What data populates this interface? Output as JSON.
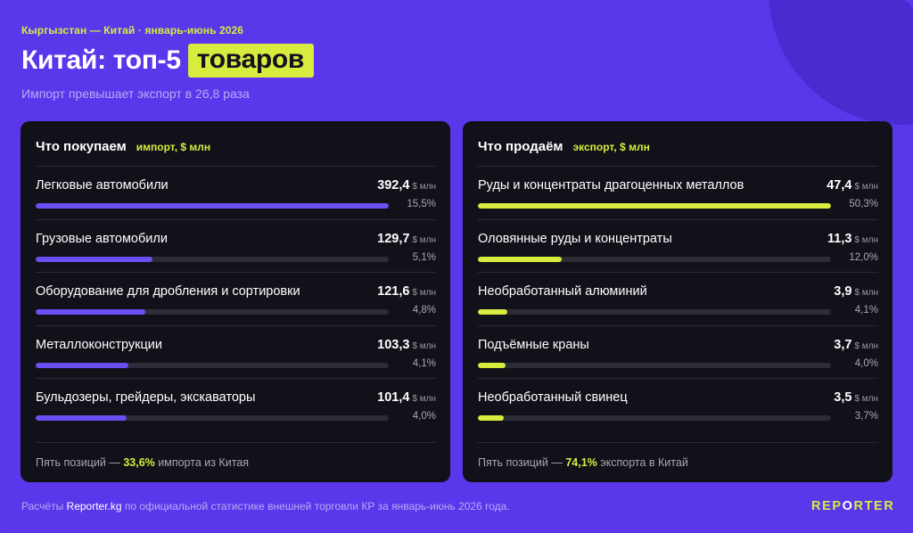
{
  "header": {
    "kicker": "Кыргызстан — Китай · январь-июнь 2026",
    "title_main": "Китай: топ-5",
    "title_highlight": "товаров",
    "subtitle": "Импорт превышает экспорт в 26,8 раза"
  },
  "unit_suffix": "$ млн",
  "colors": {
    "background": "#5a37ea",
    "panel": "#111119",
    "accent_yellow": "#d8ec3e",
    "import_bar": "#6a4ff5",
    "export_bar": "#d8ec3e"
  },
  "chart_data": [
    {
      "type": "bar",
      "orientation": "horizontal",
      "title": "Что покупаем",
      "unit_label": "импорт, $ млн",
      "categories": [
        "Легковые автомобили",
        "Грузовые автомобили",
        "Оборудование для дробления и сортировки",
        "Металлоконструкции",
        "Бульдозеры, грейдеры, экскаваторы"
      ],
      "values": [
        392.4,
        129.7,
        121.6,
        103.3,
        101.4
      ],
      "value_labels": [
        "392,4",
        "129,7",
        "121,6",
        "103,3",
        "101,4"
      ],
      "shares": [
        "15,5%",
        "5,1%",
        "4,8%",
        "4,1%",
        "4,0%"
      ],
      "xlim": [
        0,
        392.4
      ],
      "footer_before": "Пять позиций — ",
      "footer_highlight": "33,6%",
      "footer_after": " импорта из Китая"
    },
    {
      "type": "bar",
      "orientation": "horizontal",
      "title": "Что продаём",
      "unit_label": "экспорт, $ млн",
      "categories": [
        "Руды и концентраты драгоценных металлов",
        "Оловянные руды и концентраты",
        "Необработанный алюминий",
        "Подъёмные краны",
        "Необработанный свинец"
      ],
      "values": [
        47.4,
        11.3,
        3.9,
        3.7,
        3.5
      ],
      "value_labels": [
        "47,4",
        "11,3",
        "3,9",
        "3,7",
        "3,5"
      ],
      "shares": [
        "50,3%",
        "12,0%",
        "4,1%",
        "4,0%",
        "3,7%"
      ],
      "xlim": [
        0,
        47.4
      ],
      "footer_before": "Пять позиций — ",
      "footer_highlight": "74,1%",
      "footer_after": " экспорта в Китай"
    }
  ],
  "footer": {
    "before": "Расчёты ",
    "brand": "Reporter.kg",
    "after": " по официальной статистике внешней торговли КР за январь-июнь 2026 года."
  },
  "logo": {
    "part1": "REP",
    "part2": "O",
    "part3": "RTER"
  }
}
